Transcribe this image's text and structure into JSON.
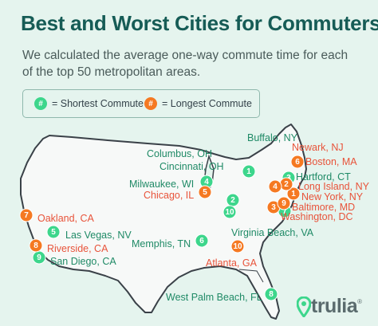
{
  "title": "Best and Worst Cities for Commuters",
  "subtitle": "We calculated the average one-way commute time for each of the top 50 metropolitan areas.",
  "colors": {
    "shortest": "#3dd68c",
    "longest": "#f57922",
    "shortest_text": "#1f8a66",
    "longest_text": "#e8533a",
    "land": "#f7f9f8",
    "border": "#3a4148",
    "title": "#165c56"
  },
  "legend": {
    "shortest": {
      "symbol": "#",
      "label": "= Shortest Commute"
    },
    "longest": {
      "symbol": "#",
      "label": "= Longest Commute"
    }
  },
  "cities": [
    {
      "id": "buffalo",
      "name": "Buffalo, NY",
      "rank": "1",
      "category": "shortest"
    },
    {
      "id": "columbus",
      "name": "Columbus, OH",
      "rank": "2",
      "category": "shortest"
    },
    {
      "id": "hartford",
      "name": "Hartford, CT",
      "rank": "3",
      "category": "shortest"
    },
    {
      "id": "milwaukee",
      "name": "Milwaukee, WI",
      "rank": "4",
      "category": "shortest"
    },
    {
      "id": "las-vegas",
      "name": "Las Vegas, NV",
      "rank": "5",
      "category": "shortest"
    },
    {
      "id": "memphis",
      "name": "Memphis, TN",
      "rank": "6",
      "category": "shortest"
    },
    {
      "id": "virginia-beach",
      "name": "Virginia Beach, VA",
      "rank": "7",
      "category": "shortest"
    },
    {
      "id": "west-palm-beach",
      "name": "West Palm Beach, FL",
      "rank": "8",
      "category": "shortest"
    },
    {
      "id": "san-diego",
      "name": "San Diego, CA",
      "rank": "9",
      "category": "shortest"
    },
    {
      "id": "cincinnati",
      "name": "Cincinnati, OH",
      "rank": "10",
      "category": "shortest"
    },
    {
      "id": "new-york",
      "name": "New York, NY",
      "rank": "1",
      "category": "longest"
    },
    {
      "id": "long-island",
      "name": "Long Island, NY",
      "rank": "2",
      "category": "longest"
    },
    {
      "id": "washington",
      "name": "Washington, DC",
      "rank": "3",
      "category": "longest"
    },
    {
      "id": "newark",
      "name": "Newark, NJ",
      "rank": "4",
      "category": "longest"
    },
    {
      "id": "chicago",
      "name": "Chicago, IL",
      "rank": "5",
      "category": "longest"
    },
    {
      "id": "boston",
      "name": "Boston, MA",
      "rank": "6",
      "category": "longest"
    },
    {
      "id": "oakland",
      "name": "Oakland, CA",
      "rank": "7",
      "category": "longest"
    },
    {
      "id": "riverside",
      "name": "Riverside, CA",
      "rank": "8",
      "category": "longest"
    },
    {
      "id": "baltimore",
      "name": "Baltimore, MD",
      "rank": "9",
      "category": "longest"
    },
    {
      "id": "atlanta",
      "name": "Atlanta, GA",
      "rank": "10",
      "category": "longest"
    }
  ],
  "logo": {
    "text": "trulia",
    "registered": "®"
  }
}
